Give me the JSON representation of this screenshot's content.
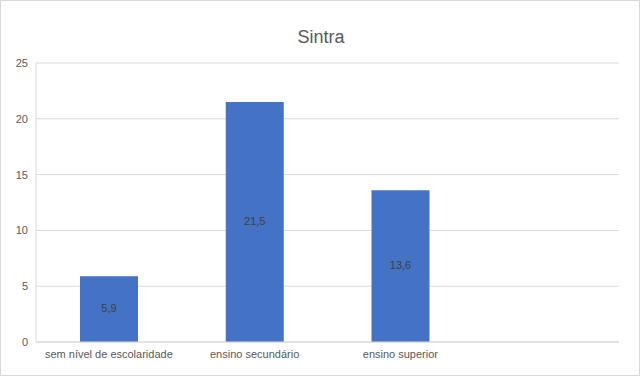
{
  "chart_data": {
    "type": "bar",
    "title": "Sintra",
    "categories": [
      "sem nível de escolaridade",
      "ensino secundário",
      "ensino superior",
      null
    ],
    "values": [
      5.9,
      21.5,
      13.6,
      null
    ],
    "value_labels": [
      "5,9",
      "21,5",
      "13,6",
      null
    ],
    "color": "#4472c4",
    "ylim": [
      0,
      25
    ],
    "yticks": [
      0,
      5,
      10,
      15,
      20,
      25
    ],
    "grid": true,
    "data_labels": true
  }
}
